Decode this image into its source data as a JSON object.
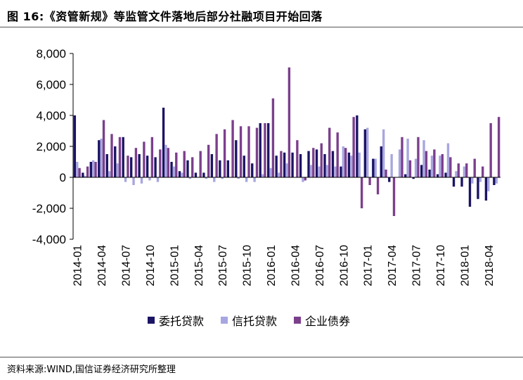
{
  "title": "图 16:《资管新规》等监管文件落地后部分社融项目开始回落",
  "source": "资料来源:WIND,国信证券经济研究所整理",
  "colors": {
    "trust_loans": "#1b1464",
    "entrusted_loans": "#a8a6e0",
    "corporate_bonds": "#7b3f8c"
  },
  "chart_data": {
    "type": "bar",
    "ylim": [
      -4000,
      8000
    ],
    "yticks": [
      "8,000",
      "6,000",
      "4,000",
      "2,000",
      "0",
      "-2,000",
      "-4,000"
    ],
    "ytick_values": [
      8000,
      6000,
      4000,
      2000,
      0,
      -2000,
      -4000
    ],
    "categories": [
      "2014-01",
      "2014-02",
      "2014-03",
      "2014-04",
      "2014-05",
      "2014-06",
      "2014-07",
      "2014-08",
      "2014-09",
      "2014-10",
      "2014-11",
      "2014-12",
      "2015-01",
      "2015-02",
      "2015-03",
      "2015-04",
      "2015-05",
      "2015-06",
      "2015-07",
      "2015-08",
      "2015-09",
      "2015-10",
      "2015-11",
      "2015-12",
      "2016-01",
      "2016-02",
      "2016-03",
      "2016-04",
      "2016-05",
      "2016-06",
      "2016-07",
      "2016-08",
      "2016-09",
      "2016-10",
      "2016-11",
      "2016-12",
      "2017-01",
      "2017-02",
      "2017-03",
      "2017-04",
      "2017-05",
      "2017-06",
      "2017-07",
      "2017-08",
      "2017-09",
      "2017-10",
      "2017-11",
      "2017-12",
      "2018-01",
      "2018-02",
      "2018-03",
      "2018-04",
      "2018-05"
    ],
    "xtick_labels": [
      "2014-01",
      "2014-04",
      "2014-07",
      "2014-10",
      "2015-01",
      "2015-04",
      "2015-07",
      "2015-10",
      "2016-01",
      "2016-04",
      "2016-07",
      "2016-10",
      "2017-01",
      "2017-04",
      "2017-07",
      "2017-10",
      "2018-01",
      "2018-04"
    ],
    "legend_position": "bottom",
    "series": [
      {
        "name": "委托贷款",
        "color_key": "trust_loans",
        "values": [
          4000,
          300,
          1000,
          2400,
          1500,
          2000,
          2600,
          1300,
          1500,
          1400,
          1300,
          4500,
          1000,
          400,
          1100,
          300,
          300,
          1500,
          1100,
          1100,
          2400,
          1400,
          900,
          3500,
          3500,
          1400,
          1600,
          1600,
          1500,
          1700,
          1800,
          1500,
          1700,
          700,
          1600,
          4000,
          3100,
          1200,
          2000,
          -300,
          0,
          200,
          -100,
          800,
          500,
          200,
          300,
          -600,
          -600,
          -1900,
          -1400,
          -1500,
          -500
        ]
      },
      {
        "name": "信托贷款",
        "color_key": "entrusted_loans",
        "values": [
          1000,
          100,
          1100,
          2500,
          400,
          900,
          -300,
          -500,
          -400,
          -200,
          -300,
          2100,
          700,
          300,
          -100,
          0,
          -100,
          -300,
          -100,
          0,
          -100,
          -300,
          -300,
          200,
          600,
          300,
          900,
          0,
          -300,
          800,
          700,
          800,
          700,
          2000,
          1400,
          1600,
          3200,
          1200,
          3100,
          1500,
          1800,
          2500,
          1200,
          2400,
          1400,
          1400,
          2200,
          400,
          700,
          -400,
          -300,
          -900,
          -400
        ]
      },
      {
        "name": "企业债券",
        "color_key": "corporate_bonds",
        "values": [
          600,
          700,
          1000,
          3700,
          2800,
          2600,
          1400,
          1900,
          2300,
          2600,
          1800,
          1900,
          1600,
          1700,
          1300,
          1700,
          2100,
          2800,
          3100,
          3700,
          3300,
          3300,
          3200,
          3500,
          5100,
          1700,
          7100,
          2400,
          -200,
          1900,
          2200,
          3200,
          2900,
          1900,
          3900,
          -2000,
          -500,
          -1100,
          500,
          -2500,
          2600,
          1100,
          2600,
          1700,
          1800,
          1500,
          1300,
          900,
          900,
          1200,
          700,
          3500,
          3900
        ]
      }
    ]
  }
}
